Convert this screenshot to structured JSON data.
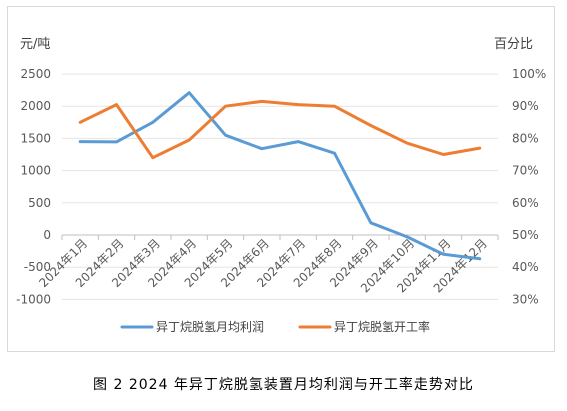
{
  "chart_data": {
    "type": "line",
    "caption": "图 2  2024 年异丁烷脱氢装置月均利润与开工率走势对比",
    "left_axis_title": "元/吨",
    "right_axis_title": "百分比",
    "categories": [
      "2024年1月",
      "2024年2月",
      "2024年3月",
      "2024年4月",
      "2024年5月",
      "2024年6月",
      "2024年7月",
      "2024年8月",
      "2024年9月",
      "2024年10月",
      "2024年11月",
      "2024年12月"
    ],
    "y_left": {
      "min": -1000,
      "max": 2500,
      "ticks": [
        "2500",
        "2000",
        "1500",
        "1000",
        "500",
        "0",
        "-500",
        "-1000"
      ],
      "tick_values": [
        2500,
        2000,
        1500,
        1000,
        500,
        0,
        -500,
        -1000
      ]
    },
    "y_right": {
      "min": 30,
      "max": 100,
      "ticks": [
        "100%",
        "90%",
        "80%",
        "70%",
        "60%",
        "50%",
        "40%",
        "30%"
      ],
      "tick_values": [
        100,
        90,
        80,
        70,
        60,
        50,
        40,
        30
      ]
    },
    "grid": true,
    "legend_position": "bottom",
    "series": [
      {
        "name": "异丁烷脱氢月均利润",
        "axis": "left",
        "color": "#5b9bd5",
        "values": [
          1450,
          1445,
          1750,
          2210,
          1550,
          1340,
          1450,
          1270,
          190,
          -30,
          -300,
          -370
        ]
      },
      {
        "name": "异丁烷脱氢开工率",
        "axis": "right",
        "color": "#ed7d31",
        "values": [
          85,
          90.5,
          74,
          79.5,
          90,
          91.5,
          90.5,
          90,
          84,
          78.5,
          75,
          77
        ]
      }
    ]
  }
}
